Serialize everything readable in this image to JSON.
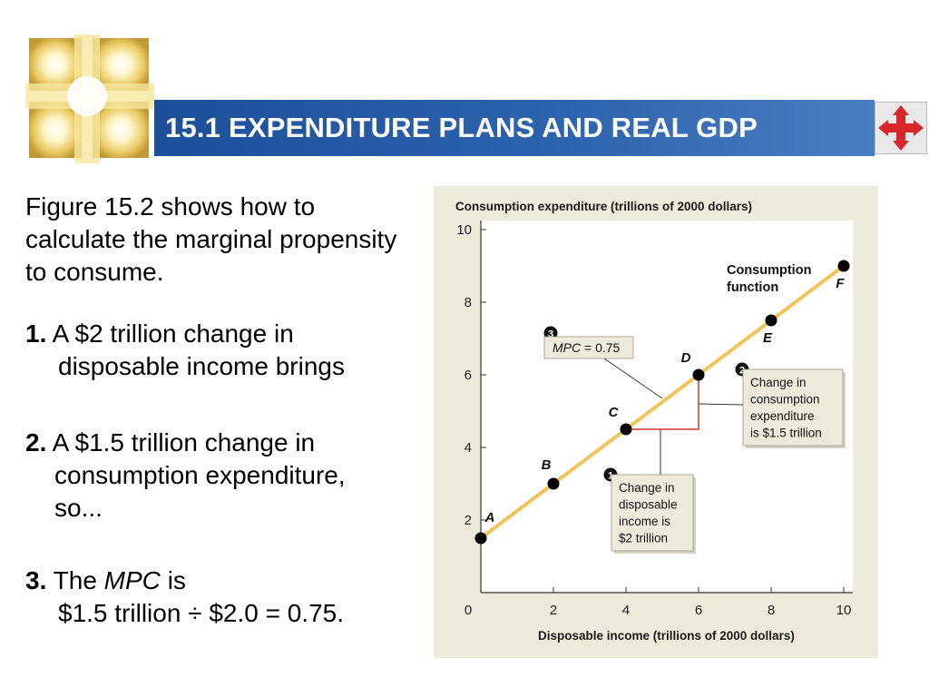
{
  "slide": {
    "title": "15.1 EXPENDITURE PLANS AND REAL GDP"
  },
  "text": {
    "intro": "Figure 15.2 shows how to calculate the marginal propensity to consume.",
    "step1_num": "1.",
    "step1_a": "A $2 trillion change in",
    "step1_b": "disposable income brings",
    "step2_num": "2.",
    "step2_a": "A $1.5 trillion change in",
    "step2_b": "consumption expenditure,",
    "step2_c": "so...",
    "step3_num": "3.",
    "step3_the": "The",
    "step3_mpc": "MPC",
    "step3_is": "is",
    "step3_calc": "$1.5 trillion ÷ $2.0 = 0.75."
  },
  "icons": {
    "logo": "golden-cross-logo",
    "nav": "four-arrows-nav-icon"
  },
  "colors": {
    "title_bar": "#2d63ad",
    "line": "#f2c25b",
    "triangle": "#d9342b",
    "figure_bg": "#efebdc",
    "label_box": "#efebdc"
  },
  "chart_data": {
    "type": "line",
    "title": "",
    "ylabel": "Consumption expenditure (trillions of 2000 dollars)",
    "xlabel": "Disposable income (trillions of 2000 dollars)",
    "xlim": [
      0,
      10
    ],
    "ylim": [
      0,
      10
    ],
    "x_ticks": [
      0,
      2,
      4,
      6,
      8,
      10
    ],
    "y_ticks": [
      2,
      4,
      6,
      8,
      10
    ],
    "series": [
      {
        "name": "Consumption function",
        "x": [
          0,
          10
        ],
        "y": [
          1.5,
          9.0
        ]
      }
    ],
    "points": [
      {
        "label": "A",
        "x": 0,
        "y": 1.5
      },
      {
        "label": "B",
        "x": 2,
        "y": 3.0
      },
      {
        "label": "C",
        "x": 4,
        "y": 4.5
      },
      {
        "label": "D",
        "x": 6,
        "y": 6.0
      },
      {
        "label": "E",
        "x": 8,
        "y": 7.5
      },
      {
        "label": "F",
        "x": 10,
        "y": 9.0
      }
    ],
    "annotations": {
      "mpc_num": "3",
      "mpc_label_italic": "MPC",
      "mpc_label_rest": " = 0.75",
      "consumption_num": "2",
      "consumption_lines": [
        "Change in",
        "consumption",
        "expenditure",
        "is $1.5 trillion"
      ],
      "income_num": "1",
      "income_lines": [
        "Change in",
        "disposable",
        "income is",
        "$2 trillion"
      ],
      "function_lines": [
        "Consumption",
        "function"
      ]
    }
  }
}
